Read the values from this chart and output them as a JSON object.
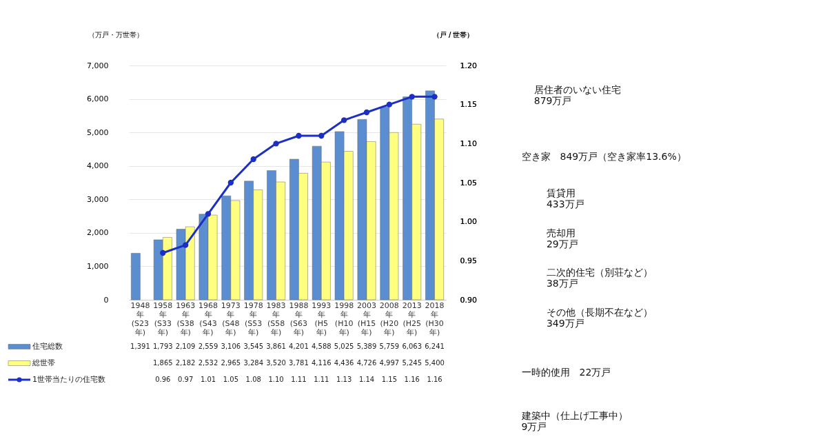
{
  "chart_data": {
    "type": "bar",
    "categories": [
      "1948年(S23年)",
      "1958年(S33年)",
      "1963年(S38年)",
      "1968年(S43年)",
      "1973年(S48年)",
      "1978年(S53年)",
      "1983年(S58年)",
      "1988年(S63年)",
      "1993年(H5年)",
      "1998年(H10年)",
      "2003年(H15年)",
      "2008年(H20年)",
      "2013年(H25年)",
      "2018年(H30年)"
    ],
    "series": [
      {
        "name": "住宅総数",
        "color": "#5b8ed0",
        "values": [
          1391,
          1793,
          2109,
          2559,
          3106,
          3545,
          3861,
          4201,
          4588,
          5025,
          5389,
          5759,
          6063,
          6241
        ],
        "value_labels": [
          "1,391",
          "1,793",
          "2,109",
          "2,559",
          "3,106",
          "3,545",
          "3,861",
          "4,201",
          "4,588",
          "5,025",
          "5,389",
          "5,759",
          "6,063",
          "6,241"
        ]
      },
      {
        "name": "総世帯",
        "color": "#ffff80",
        "values": [
          null,
          1865,
          2182,
          2532,
          2965,
          3284,
          3520,
          3781,
          4116,
          4436,
          4726,
          4997,
          5245,
          5400
        ],
        "value_labels": [
          null,
          "1,865",
          "2,182",
          "2,532",
          "2,965",
          "3,284",
          "3,520",
          "3,781",
          "4,116",
          "4,436",
          "4,726",
          "4,997",
          "5,245",
          "5,400"
        ]
      },
      {
        "name": "1世帯当たりの住宅数",
        "color": "#1c2fc4",
        "type": "line",
        "axis": "y2",
        "marker": "circle",
        "values": [
          null,
          0.96,
          0.97,
          1.01,
          1.05,
          1.08,
          1.1,
          1.11,
          1.11,
          1.13,
          1.14,
          1.15,
          1.16,
          1.16
        ],
        "value_labels": [
          null,
          "0.96",
          "0.97",
          "1.01",
          "1.05",
          "1.08",
          "1.10",
          "1.11",
          "1.11",
          "1.13",
          "1.14",
          "1.15",
          "1.16",
          "1.16"
        ]
      }
    ],
    "ylabel": "（万戸・万世帯）",
    "y2label": "（戸 / 世帯）",
    "ylim": [
      0,
      7000
    ],
    "yticks": [
      {
        "value": 0,
        "label": "0"
      },
      {
        "value": 1000,
        "label": "1,000"
      },
      {
        "value": 2000,
        "label": "2,000"
      },
      {
        "value": 3000,
        "label": "3,000"
      },
      {
        "value": 4000,
        "label": "4,000"
      },
      {
        "value": 5000,
        "label": "5,000"
      },
      {
        "value": 6000,
        "label": "6,000"
      },
      {
        "value": 7000,
        "label": "7,000"
      }
    ],
    "y2lim": [
      0.9,
      1.2
    ],
    "y2ticks": [
      {
        "value": 0.9,
        "label": "0.90"
      },
      {
        "value": 0.95,
        "label": "0.95"
      },
      {
        "value": 1.0,
        "label": "1.00"
      },
      {
        "value": 1.05,
        "label": "1.05"
      },
      {
        "value": 1.1,
        "label": "1.10"
      },
      {
        "value": 1.15,
        "label": "1.15"
      },
      {
        "value": 1.2,
        "label": "1.20"
      }
    ],
    "grid": "y",
    "legend": "bottom",
    "annotations": [
      "居住者のいない住宅\n879万戸",
      "空き家　849万戸（空き家率13.6%）",
      "賃貸用\n433万戸",
      "売却用\n29万戸",
      "二次的住宅（別荘など）\n38万戸",
      "その他（長期不在など）\n349万戸",
      "一時的使用　22万戸",
      "建築中（仕上げ工事中）\n9万戸"
    ]
  }
}
